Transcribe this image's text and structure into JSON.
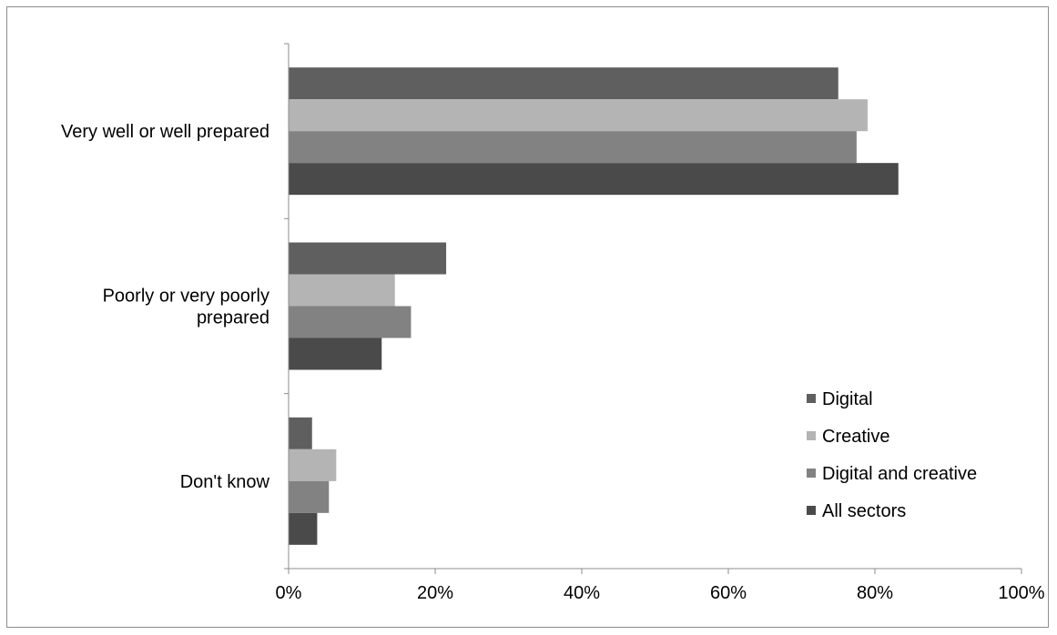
{
  "chart_data": {
    "type": "bar",
    "orientation": "horizontal",
    "categories": [
      "Very well or well prepared",
      "Poorly or very poorly prepared",
      "Don't know"
    ],
    "category_label_lines": [
      [
        "Very well or well prepared"
      ],
      [
        "Poorly or very poorly",
        "prepared"
      ],
      [
        "Don't know"
      ]
    ],
    "series": [
      {
        "name": "Digital",
        "color": "#5f5f5f",
        "values": [
          75,
          21.5,
          3.2
        ]
      },
      {
        "name": "Creative",
        "color": "#b4b4b4",
        "values": [
          79,
          14.5,
          6.5
        ]
      },
      {
        "name": "Digital and creative",
        "color": "#828282",
        "values": [
          77.5,
          16.7,
          5.5
        ]
      },
      {
        "name": "All sectors",
        "color": "#4a4a4a",
        "values": [
          83.2,
          12.7,
          3.9
        ]
      }
    ],
    "xlim": [
      0,
      100
    ],
    "x_ticks": [
      0,
      20,
      40,
      60,
      80,
      100
    ],
    "x_tick_labels": [
      "0%",
      "20%",
      "40%",
      "60%",
      "80%",
      "100%"
    ],
    "grid": false,
    "legend_position": "bottom-right",
    "title": "",
    "xlabel": "",
    "ylabel": ""
  }
}
